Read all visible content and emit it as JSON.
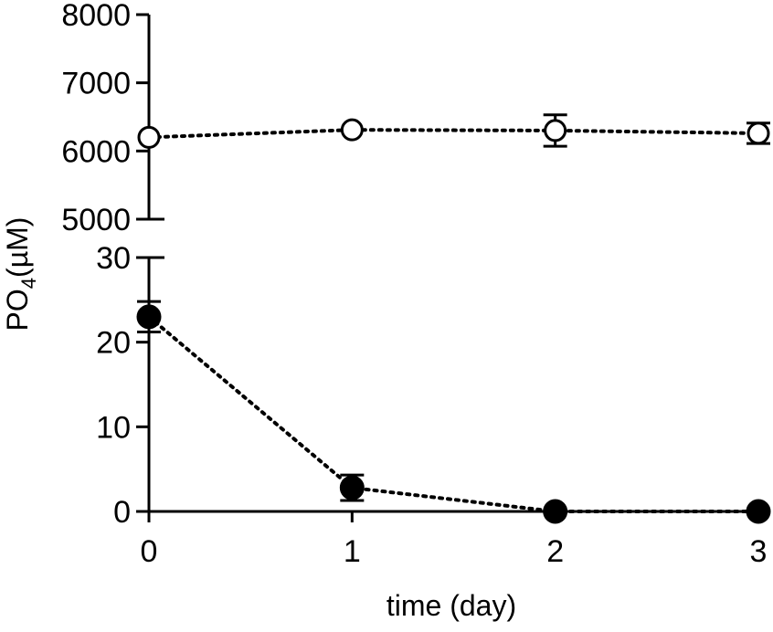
{
  "chart_data": {
    "type": "scatter",
    "xlabel": "time (day)",
    "ylabel": {
      "main": "PO",
      "sub": "4",
      "unit": "(µM)"
    },
    "x_ticks": [
      0,
      1,
      2,
      3
    ],
    "x_range": [
      0,
      3
    ],
    "y_axis_break": true,
    "upper_segment": {
      "ylim": [
        5000,
        8000
      ],
      "ticks": [
        5000,
        6000,
        7000,
        8000
      ]
    },
    "lower_segment": {
      "ylim": [
        0,
        30
      ],
      "ticks": [
        0,
        10,
        20,
        30
      ]
    },
    "grid": false,
    "legend": "none",
    "series": [
      {
        "marker": "open-circle",
        "line": "dotted",
        "segment": "upper",
        "x": [
          0,
          1,
          2,
          3
        ],
        "y": [
          6200,
          6310,
          6300,
          6260
        ],
        "err": [
          0,
          0,
          230,
          150
        ]
      },
      {
        "marker": "filled-circle",
        "line": "dotted",
        "segment": "lower",
        "x": [
          0,
          1,
          2,
          3
        ],
        "y": [
          23,
          2.8,
          0,
          0
        ],
        "err": [
          1.8,
          1.5,
          0,
          0
        ]
      }
    ]
  }
}
